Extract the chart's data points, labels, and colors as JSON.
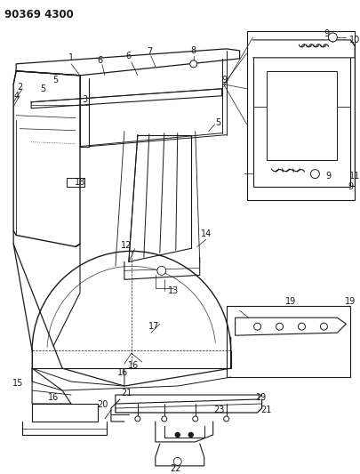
{
  "title": "90369 4300",
  "bg_color": "#ffffff",
  "line_color": "#1a1a1a",
  "title_fontsize": 8.5,
  "label_fontsize": 7,
  "fig_width": 4.06,
  "fig_height": 5.33,
  "dpi": 100
}
